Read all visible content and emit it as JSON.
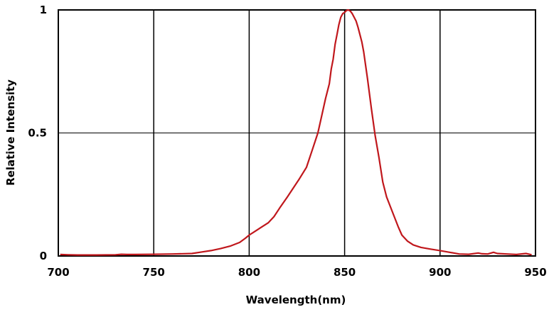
{
  "chart_data": {
    "type": "line",
    "title": "",
    "xlabel": "Wavelength(nm)",
    "ylabel": "Relative Intensity",
    "xlim": [
      700,
      950
    ],
    "ylim": [
      0,
      1
    ],
    "x_ticks": [
      "700",
      "750",
      "800",
      "850",
      "900",
      "950"
    ],
    "y_ticks": [
      "0",
      "0.5",
      "1"
    ],
    "grid": {
      "vertical": true,
      "horizontal": true
    },
    "legend": "none",
    "series": [
      {
        "color": "#c0171c",
        "x": [
          701,
          705,
          710,
          720,
          730,
          733,
          736,
          740,
          750,
          760,
          770,
          775,
          780,
          785,
          790,
          795,
          798,
          800,
          803,
          806,
          810,
          813,
          816,
          820,
          823,
          826,
          830,
          833,
          836,
          838,
          840,
          842,
          843,
          844,
          845,
          846,
          847,
          848,
          849,
          850,
          851,
          852,
          853,
          854,
          855,
          856,
          857,
          858,
          859,
          860,
          862,
          864,
          866,
          868,
          870,
          872,
          874,
          876,
          878,
          880,
          883,
          886,
          890,
          895,
          900,
          905,
          910,
          915,
          920,
          922,
          925,
          928,
          930,
          935,
          940,
          945,
          948
        ],
        "y": [
          0.006,
          0.005,
          0.004,
          0.004,
          0.005,
          0.007,
          0.006,
          0.006,
          0.007,
          0.008,
          0.01,
          0.016,
          0.022,
          0.03,
          0.04,
          0.055,
          0.072,
          0.085,
          0.1,
          0.115,
          0.135,
          0.16,
          0.195,
          0.24,
          0.275,
          0.31,
          0.36,
          0.43,
          0.5,
          0.57,
          0.64,
          0.7,
          0.76,
          0.8,
          0.86,
          0.9,
          0.94,
          0.97,
          0.985,
          0.99,
          0.998,
          1.0,
          0.995,
          0.985,
          0.97,
          0.955,
          0.93,
          0.9,
          0.87,
          0.83,
          0.72,
          0.6,
          0.49,
          0.4,
          0.3,
          0.24,
          0.2,
          0.16,
          0.12,
          0.085,
          0.06,
          0.045,
          0.035,
          0.028,
          0.022,
          0.015,
          0.008,
          0.007,
          0.012,
          0.009,
          0.008,
          0.015,
          0.01,
          0.008,
          0.006,
          0.01,
          0.005
        ]
      }
    ]
  }
}
